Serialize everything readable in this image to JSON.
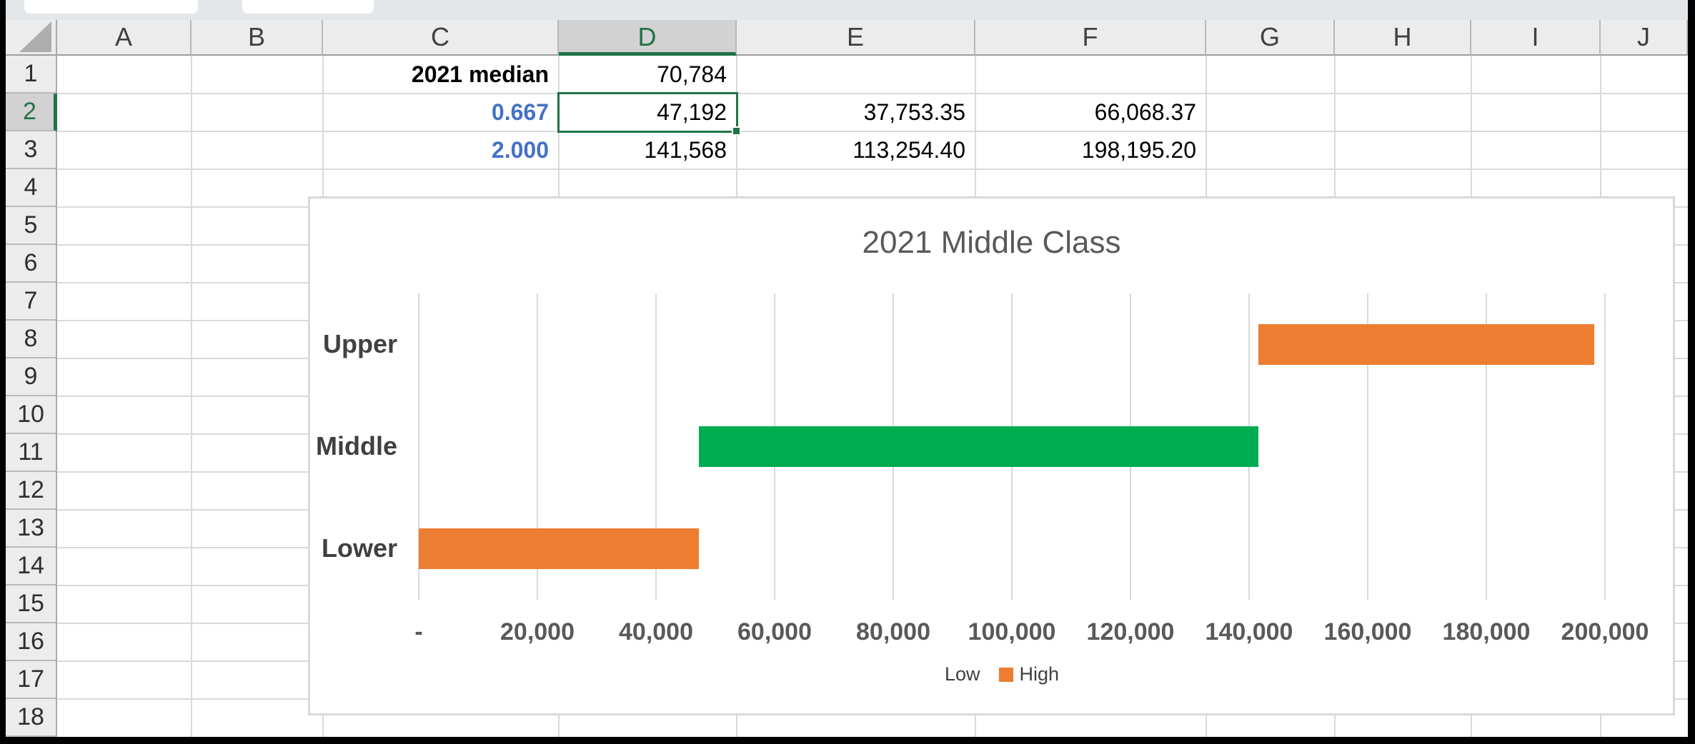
{
  "sheet": {
    "column_labels": [
      "A",
      "B",
      "C",
      "D",
      "E",
      "F",
      "G",
      "H",
      "I",
      "J"
    ],
    "row_labels": [
      "1",
      "2",
      "3",
      "4",
      "5",
      "6",
      "7",
      "8",
      "9",
      "10",
      "11",
      "12",
      "13",
      "14",
      "15",
      "16",
      "17",
      "18"
    ],
    "selected_column": "D",
    "selected_row": "2",
    "selected_cell": "D2",
    "cells": [
      {
        "ref": "C1",
        "col": "C",
        "row": 1,
        "text": "2021 median",
        "style": "bold"
      },
      {
        "ref": "D1",
        "col": "D",
        "row": 1,
        "text": "70,784",
        "style": "plain"
      },
      {
        "ref": "C2",
        "col": "C",
        "row": 2,
        "text": "0.667",
        "style": "blue"
      },
      {
        "ref": "D2",
        "col": "D",
        "row": 2,
        "text": "47,192",
        "style": "plain"
      },
      {
        "ref": "E2",
        "col": "E",
        "row": 2,
        "text": "37,753.35",
        "style": "plain"
      },
      {
        "ref": "F2",
        "col": "F",
        "row": 2,
        "text": "66,068.37",
        "style": "plain"
      },
      {
        "ref": "C3",
        "col": "C",
        "row": 3,
        "text": "2.000",
        "style": "blue"
      },
      {
        "ref": "D3",
        "col": "D",
        "row": 3,
        "text": "141,568",
        "style": "plain"
      },
      {
        "ref": "E3",
        "col": "E",
        "row": 3,
        "text": "113,254.40",
        "style": "plain"
      },
      {
        "ref": "F3",
        "col": "F",
        "row": 3,
        "text": "198,195.20",
        "style": "plain"
      }
    ]
  },
  "chart_data": {
    "type": "bar",
    "orientation": "horizontal",
    "title": "2021 Middle Class",
    "categories": [
      "Upper",
      "Middle",
      "Lower"
    ],
    "series": [
      {
        "name": "Low",
        "role": "invisible-base",
        "values": [
          141568,
          47192,
          0
        ]
      },
      {
        "name": "High",
        "role": "visible-span",
        "values": [
          56627.2,
          94376,
          47192
        ]
      }
    ],
    "bar_spans": [
      {
        "category": "Upper",
        "from": 141568,
        "to": 198195.2,
        "color": "#ED7D31"
      },
      {
        "category": "Middle",
        "from": 47192,
        "to": 141568,
        "color": "#00AC50"
      },
      {
        "category": "Lower",
        "from": 0,
        "to": 47192,
        "color": "#ED7D31"
      }
    ],
    "xlim": [
      0,
      200000
    ],
    "x_tick_step": 20000,
    "x_tick_labels": [
      "-",
      "20,000",
      "40,000",
      "60,000",
      "80,000",
      "100,000",
      "120,000",
      "140,000",
      "160,000",
      "180,000",
      "200,000"
    ],
    "grid": "vertical",
    "legend_position": "bottom",
    "legend": [
      {
        "label": "Low",
        "marker_color": "none"
      },
      {
        "label": "High",
        "marker_color": "#ED7D31"
      }
    ],
    "title_color": "#595959"
  },
  "colors": {
    "selection_green": "#217346",
    "value_blue": "#4472C4",
    "bar_orange": "#ED7D31",
    "bar_green": "#00AC50",
    "gridline_gray": "#D9D9D9"
  }
}
